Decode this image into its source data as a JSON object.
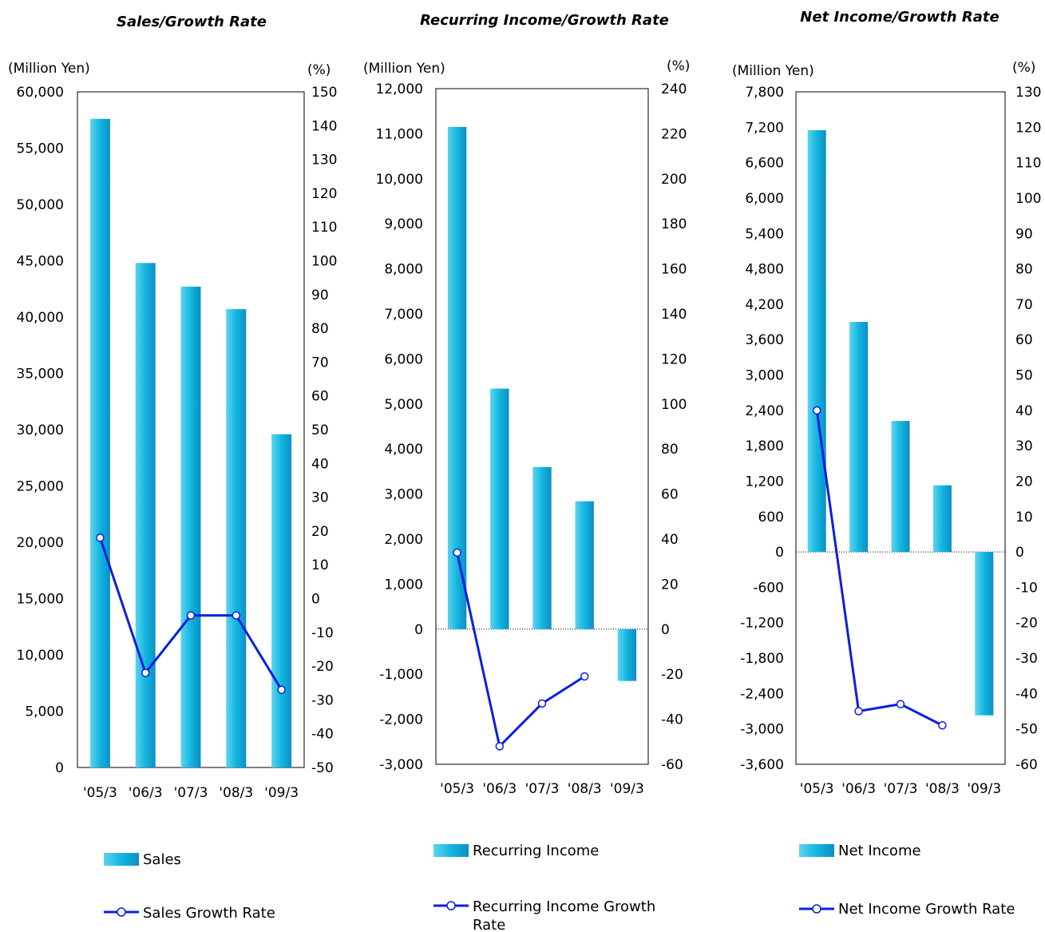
{
  "colors": {
    "bar_light": "#5FD3EE",
    "bar_mid": "#12B6E0",
    "bar_dark": "#0C8FC4",
    "line": "#0B1FE0",
    "axis": "#000000"
  },
  "chart_data": [
    {
      "type": "bar",
      "title": "Sales/Growth Rate",
      "left_unit": "(Million Yen)",
      "right_unit": "(%)",
      "categories": [
        "'05/3",
        "'06/3",
        "'07/3",
        "'08/3",
        "'09/3"
      ],
      "y_left": {
        "min": 0,
        "max": 60000,
        "step": 5000,
        "labels": [
          "0",
          "5,000",
          "10,000",
          "15,000",
          "20,000",
          "25,000",
          "30,000",
          "35,000",
          "40,000",
          "45,000",
          "50,000",
          "55,000",
          "60,000"
        ]
      },
      "y_right": {
        "min": -50,
        "max": 150,
        "step": 10,
        "labels": [
          "-50",
          "-40",
          "-30",
          "-20",
          "-10",
          "0",
          "10",
          "20",
          "30",
          "40",
          "50",
          "60",
          "70",
          "80",
          "90",
          "100",
          "110",
          "120",
          "130",
          "140",
          "150"
        ]
      },
      "zero_line": false,
      "series": [
        {
          "name": "Sales",
          "kind": "bar",
          "values": [
            57600,
            44800,
            42700,
            40700,
            29600
          ]
        },
        {
          "name": "Sales Growth Rate",
          "kind": "line",
          "values": [
            18,
            -22,
            -5,
            -5,
            -27
          ]
        }
      ]
    },
    {
      "type": "bar",
      "title": "Recurring Income/Growth Rate",
      "left_unit": "(Million Yen)",
      "right_unit": "(%)",
      "categories": [
        "'05/3",
        "'06/3",
        "'07/3",
        "'08/3",
        "'09/3"
      ],
      "y_left": {
        "min": -3000,
        "max": 12000,
        "step": 1000,
        "labels": [
          "-3,000",
          "-2,000",
          "-1,000",
          "0",
          "1,000",
          "2,000",
          "3,000",
          "4,000",
          "5,000",
          "6,000",
          "7,000",
          "8,000",
          "9,000",
          "10,000",
          "11,000",
          "12,000"
        ]
      },
      "y_right": {
        "min": -60,
        "max": 240,
        "step": 20,
        "labels": [
          "-60",
          "-40",
          "-20",
          "0",
          "20",
          "40",
          "60",
          "80",
          "100",
          "120",
          "140",
          "160",
          "180",
          "200",
          "220",
          "240"
        ]
      },
      "zero_line": true,
      "series": [
        {
          "name": "Recurring Income",
          "kind": "bar",
          "values": [
            11150,
            5340,
            3600,
            2840,
            -1150
          ]
        },
        {
          "name": "Recurring Income Growth Rate",
          "kind": "line",
          "values": [
            34,
            -52,
            -33,
            -21,
            null
          ]
        }
      ]
    },
    {
      "type": "bar",
      "title": "Net Income/Growth Rate",
      "left_unit": "(Million Yen)",
      "right_unit": "(%)",
      "categories": [
        "'05/3",
        "'06/3",
        "'07/3",
        "'08/3",
        "'09/3"
      ],
      "y_left": {
        "min": -3600,
        "max": 7800,
        "step": 600,
        "labels": [
          "-3,600",
          "-3,000",
          "-2,400",
          "-1,800",
          "-1,200",
          "-600",
          "0",
          "600",
          "1,200",
          "1,800",
          "2,400",
          "3,000",
          "3,600",
          "4,200",
          "4,800",
          "5,400",
          "6,000",
          "6,600",
          "7,200",
          "7,800"
        ]
      },
      "y_right": {
        "min": -60,
        "max": 130,
        "step": 10,
        "labels": [
          "-60",
          "-50",
          "-40",
          "-30",
          "-20",
          "-10",
          "0",
          "10",
          "20",
          "30",
          "40",
          "50",
          "60",
          "70",
          "80",
          "90",
          "100",
          "110",
          "120",
          "130"
        ]
      },
      "zero_line": true,
      "series": [
        {
          "name": "Net Income",
          "kind": "bar",
          "values": [
            7150,
            3900,
            2220,
            1130,
            -2770
          ]
        },
        {
          "name": "Net Income Growth Rate",
          "kind": "line",
          "values": [
            40,
            -45,
            -43,
            -49,
            null
          ]
        }
      ]
    }
  ]
}
